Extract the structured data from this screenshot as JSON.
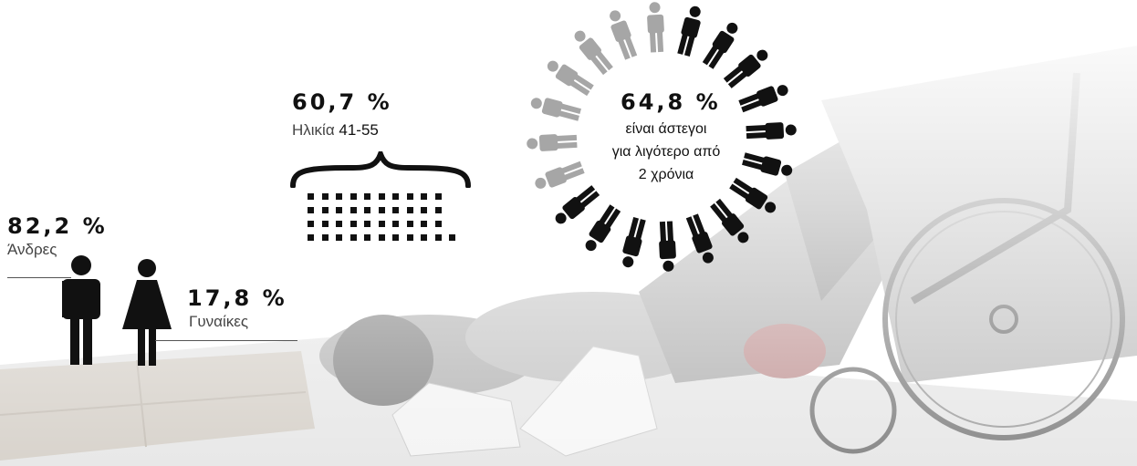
{
  "men": {
    "percent": "82,2 %",
    "label": "Άνδρες",
    "value": 82.2
  },
  "women": {
    "percent": "17,8 %",
    "label": "Γυναίκες",
    "value": 17.8
  },
  "age": {
    "percent": "60,7 %",
    "label_prefix": "Ηλικία ",
    "label_range": "41-55",
    "value": 60.7
  },
  "homeless_duration": {
    "percent": "64,8 %",
    "line1": "είναι άστεγοι",
    "line2": "για λιγότερο από",
    "line3": "2 χρόνια",
    "value": 64.8,
    "figures_total": 20,
    "figures_dark": 13
  },
  "colors": {
    "dark": "#111111",
    "grey": "#a6a6a6",
    "photo_tint": "#d9d9d9"
  }
}
